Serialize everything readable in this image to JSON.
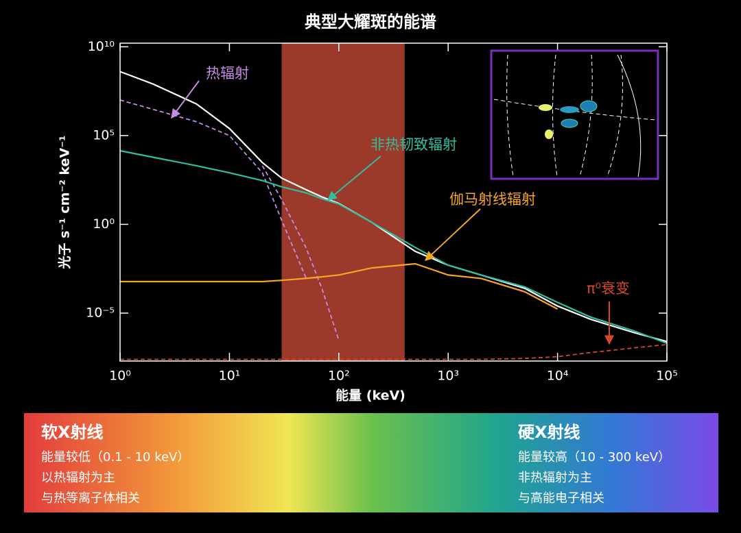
{
  "chart_data": {
    "type": "line",
    "title": "典型大耀斑的能谱",
    "x_label": "能量 (keV)",
    "y_label": "光子 s⁻¹ cm⁻² keV⁻¹",
    "x_scale": "log",
    "y_scale": "log",
    "xlim": [
      1,
      100000
    ],
    "ylim": [
      2e-08,
      16000000000.0
    ],
    "xticks": [
      {
        "value": 1,
        "label": "10⁰"
      },
      {
        "value": 10,
        "label": "10¹"
      },
      {
        "value": 100,
        "label": "10²"
      },
      {
        "value": 1000,
        "label": "10³"
      },
      {
        "value": 10000,
        "label": "10⁴"
      },
      {
        "value": 100000,
        "label": "10⁵"
      }
    ],
    "yticks": [
      {
        "value": 1e-05,
        "label": "10⁻⁵"
      },
      {
        "value": 1,
        "label": "10⁰"
      },
      {
        "value": 100000,
        "label": "10⁵"
      },
      {
        "value": 10000000000,
        "label": "10¹⁰"
      }
    ],
    "band": {
      "xrange": [
        30,
        400
      ],
      "color": "#9b3a2a"
    },
    "x": [
      1,
      2,
      5,
      10,
      20,
      30,
      50,
      70,
      100,
      200,
      500,
      1000,
      2000,
      5000,
      10000,
      20000,
      50000,
      100000
    ],
    "series": [
      {
        "color": "#ffffff",
        "values": [
          400000000.0,
          80000000.0,
          6000000.0,
          250000.0,
          3000,
          400,
          90,
          35,
          15,
          1.3,
          0.03,
          0.005,
          0.0014,
          0.00025,
          2.5e-05,
          4.5e-06,
          8e-07,
          2.5e-07
        ]
      },
      {
        "name": "热辐射",
        "color": "#c58ce6",
        "dashed": true,
        "values": [
          10000000.0,
          3000000.0,
          600000.0,
          100000.0,
          800,
          1.7,
          0.001,
          null,
          null,
          null,
          null,
          null,
          null,
          null,
          null,
          null,
          null,
          null
        ]
      },
      {
        "color": "#c58ce6",
        "dashed": true,
        "values": [
          null,
          null,
          null,
          null,
          2000,
          25,
          0.05,
          0.00025,
          3e-07,
          null,
          null,
          null,
          null,
          null,
          null,
          null,
          null,
          null
        ]
      },
      {
        "name": "非热韧致辐射",
        "color": "#2fbfa0",
        "values": [
          14000,
          6000,
          2000,
          800,
          290,
          130,
          60,
          28,
          14,
          1.3,
          0.05,
          0.005,
          0.0014,
          0.0003,
          4e-05,
          6e-06,
          1e-06,
          2e-07
        ]
      },
      {
        "name": "伽马射线辐射",
        "color": "#f5a623",
        "values": [
          0.0006,
          0.0006,
          0.0006,
          0.0006,
          0.0006,
          0.0007,
          0.0009,
          0.0011,
          0.0014,
          0.0035,
          0.006,
          0.0014,
          0.0009,
          0.00016,
          1.7e-05,
          null,
          null,
          null
        ]
      },
      {
        "name": "π⁰衰变",
        "color": "#d9472b",
        "dashed": true,
        "values": [
          2.5e-08,
          2.5e-08,
          2.5e-08,
          2.5e-08,
          2.5e-08,
          2.5e-08,
          2.5e-08,
          2.5e-08,
          2.5e-08,
          2.5e-08,
          2.5e-08,
          2.5e-08,
          2.5e-08,
          2.8e-08,
          3.5e-08,
          6e-08,
          1.1e-07,
          1.7e-07
        ]
      }
    ]
  },
  "energy_bands": {
    "soft": {
      "title": "软X射线",
      "lines": [
        "能量较低（0.1 - 10 keV）",
        "以热辐射为主",
        "与热等离子体相关"
      ]
    },
    "hard": {
      "title": "硬X射线",
      "lines": [
        "能量较高（10 - 300 keV）",
        "非热辐射为主",
        "与高能电子相关"
      ]
    }
  }
}
